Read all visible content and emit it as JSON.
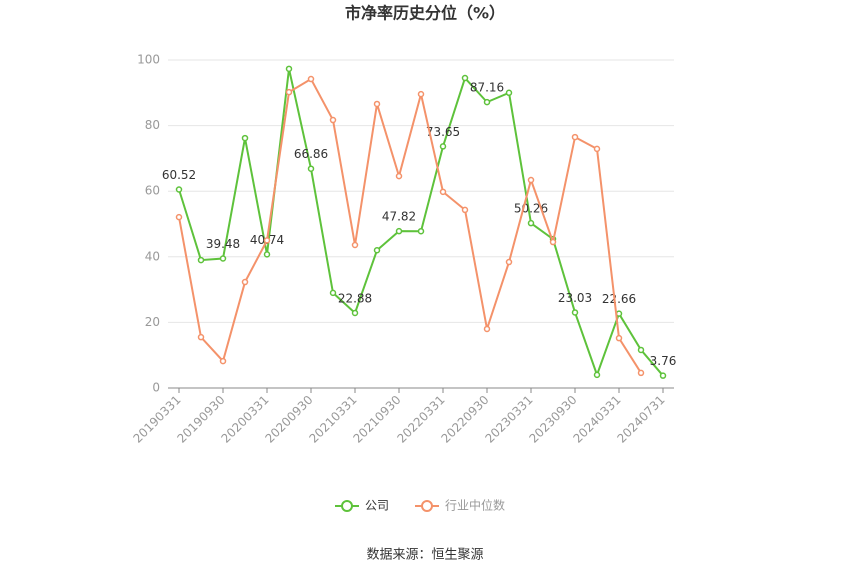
{
  "chart_data": {
    "type": "line",
    "title": "市净率历史分位（%）",
    "categories": [
      "20190331",
      null,
      "20190930",
      null,
      "20200331",
      null,
      "20200930",
      null,
      "20210331",
      null,
      "20210930",
      null,
      "20220331",
      null,
      "20220930",
      null,
      "20230331",
      null,
      "20230930",
      null,
      "20240331",
      null,
      "20240731"
    ],
    "series": [
      {
        "name": "公司",
        "color": "#5ec23b",
        "values": [
          60.52,
          39.0,
          39.48,
          76.2,
          40.74,
          97.3,
          66.86,
          29.0,
          22.88,
          42.0,
          47.82,
          47.8,
          73.65,
          94.5,
          87.16,
          90.0,
          50.26,
          45.4,
          23.03,
          4.0,
          22.66,
          11.6,
          3.76
        ],
        "value_labels": [
          "60.52",
          null,
          "39.48",
          null,
          "40.74",
          null,
          "66.86",
          null,
          "22.88",
          null,
          "47.82",
          null,
          "73.65",
          null,
          "87.16",
          null,
          "50.26",
          null,
          "23.03",
          null,
          "22.66",
          null,
          "3.76"
        ]
      },
      {
        "name": "行业中位数",
        "color": "#f4926a",
        "values": [
          52.1,
          15.5,
          8.2,
          32.3,
          45.0,
          90.2,
          94.2,
          81.7,
          43.6,
          86.6,
          64.6,
          89.6,
          59.8,
          54.3,
          18.0,
          38.4,
          63.4,
          44.5,
          76.5,
          72.9,
          15.2,
          4.6,
          null
        ]
      }
    ],
    "ylim": [
      0,
      100
    ],
    "yticks": [
      0,
      20,
      40,
      60,
      80,
      100
    ],
    "grid": true,
    "legend": "bottom",
    "source": "数据来源：恒生聚源"
  }
}
